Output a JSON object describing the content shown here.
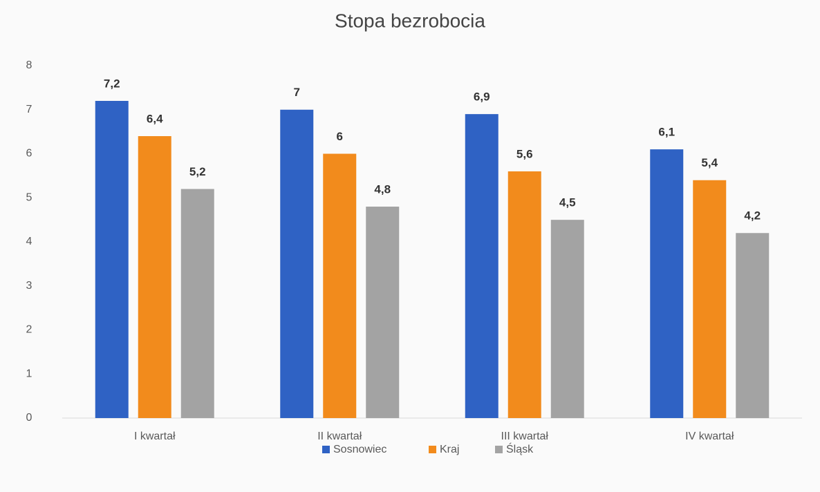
{
  "chart_data": {
    "type": "bar",
    "title": "Stopa bezrobocia",
    "categories": [
      "I kwartał",
      "II kwartał",
      "III kwartał",
      "IV kwartał"
    ],
    "series": [
      {
        "name": "Sosnowiec",
        "color": "#2f62c4",
        "values": [
          7.2,
          7,
          6.9,
          6.1
        ],
        "value_labels": [
          "7,2",
          "7",
          "6,9",
          "6,1"
        ]
      },
      {
        "name": "Kraj",
        "color": "#f28b1c",
        "values": [
          6.4,
          6,
          5.6,
          5.4
        ],
        "value_labels": [
          "6,4",
          "6",
          "5,6",
          "5,4"
        ]
      },
      {
        "name": "Śląsk",
        "color": "#a3a3a3",
        "values": [
          5.2,
          4.8,
          4.5,
          4.2
        ],
        "value_labels": [
          "5,2",
          "4,8",
          "4,5",
          "4,2"
        ]
      }
    ],
    "ylim": [
      0,
      8
    ],
    "yticks": [
      0,
      1,
      2,
      3,
      4,
      5,
      6,
      7,
      8
    ],
    "grid": false,
    "legend": "bottom"
  }
}
